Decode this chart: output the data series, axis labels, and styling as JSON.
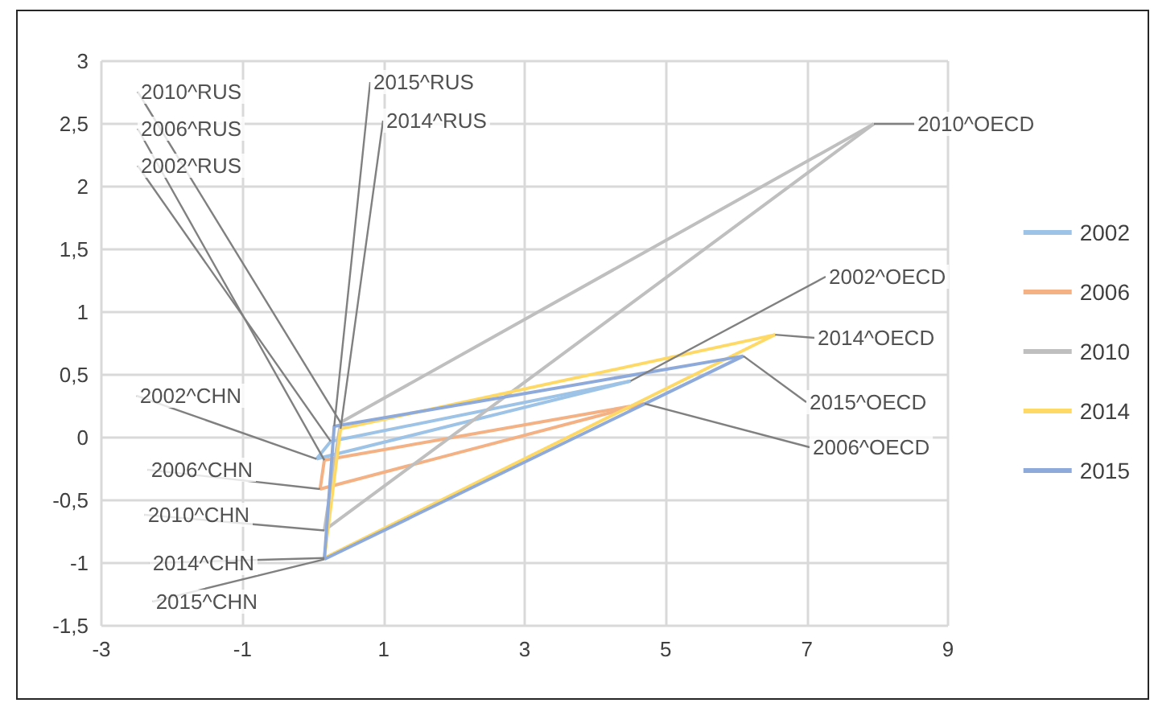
{
  "chart_data": {
    "type": "line",
    "marker": "none",
    "line_style": "solid",
    "grid": true,
    "legend": "right",
    "xlim": [
      -3,
      9
    ],
    "xticks": [
      -3,
      -1,
      1,
      3,
      5,
      7,
      9
    ],
    "ylim": [
      -1.5,
      3
    ],
    "yticks": [
      {
        "value": -1.5,
        "label": "-1,5"
      },
      -1,
      {
        "value": -0.5,
        "label": "-0,5"
      },
      0,
      {
        "value": 0.5,
        "label": "0,5"
      },
      1,
      {
        "value": 1.5,
        "label": "1,5"
      },
      2,
      {
        "value": 2.5,
        "label": "2,5"
      },
      3
    ],
    "series": [
      {
        "name": "2002",
        "color": "#9dc3e6",
        "x": [
          0.05,
          0.25,
          4.5
        ],
        "values": [
          -0.17,
          -0.03,
          0.45
        ]
      },
      {
        "color": "#9dc3e6",
        "x": [
          0.05,
          4.5
        ],
        "values": [
          -0.17,
          0.45
        ]
      },
      {
        "name": "2006",
        "color": "#f4b183",
        "x": [
          0.1,
          0.16,
          4.7
        ],
        "values": [
          -0.41,
          -0.18,
          0.27
        ]
      },
      {
        "color": "#f4b183",
        "x": [
          0.1,
          4.7
        ],
        "values": [
          -0.41,
          0.27
        ]
      },
      {
        "name": "2010",
        "color": "#bfbfbf",
        "x": [
          0.16,
          0.39,
          7.95
        ],
        "values": [
          -0.74,
          0.12,
          2.5
        ]
      },
      {
        "color": "#bfbfbf",
        "x": [
          0.16,
          7.95
        ],
        "values": [
          -0.74,
          2.5
        ]
      },
      {
        "name": "2014",
        "color": "#ffd966",
        "x": [
          0.16,
          0.39,
          6.55
        ],
        "values": [
          -0.96,
          0.07,
          0.82
        ]
      },
      {
        "color": "#ffd966",
        "x": [
          0.16,
          6.55
        ],
        "values": [
          -0.96,
          0.82
        ]
      },
      {
        "name": "2015",
        "color": "#8eaadb",
        "x": [
          0.16,
          0.3,
          6.1
        ],
        "values": [
          -0.97,
          0.09,
          0.65
        ]
      },
      {
        "color": "#8eaadb",
        "x": [
          0.16,
          6.1
        ],
        "values": [
          -0.97,
          0.65
        ]
      }
    ],
    "annotations": [
      {
        "text": "2010^RUS",
        "x": 0.39,
        "y": 0.12
      },
      {
        "text": "2006^RUS",
        "x": 0.16,
        "y": -0.18
      },
      {
        "text": "2002^RUS",
        "x": 0.25,
        "y": -0.03
      },
      {
        "text": "2015^RUS",
        "x": 0.3,
        "y": 0.09
      },
      {
        "text": "2014^RUS",
        "x": 0.39,
        "y": 0.07
      },
      {
        "text": "2010^OECD",
        "x": 7.95,
        "y": 2.5
      },
      {
        "text": "2002^OECD",
        "x": 4.5,
        "y": 0.45
      },
      {
        "text": "2014^OECD",
        "x": 6.55,
        "y": 0.82
      },
      {
        "text": "2015^OECD",
        "x": 6.1,
        "y": 0.65
      },
      {
        "text": "2006^OECD",
        "x": 4.7,
        "y": 0.27
      },
      {
        "text": "2002^CHN",
        "x": 0.05,
        "y": -0.17
      },
      {
        "text": "2006^CHN",
        "x": 0.1,
        "y": -0.41
      },
      {
        "text": "2010^CHN",
        "x": 0.16,
        "y": -0.74
      },
      {
        "text": "2014^CHN",
        "x": 0.16,
        "y": -0.96
      },
      {
        "text": "2015^CHN",
        "x": 0.16,
        "y": -0.97
      }
    ]
  }
}
